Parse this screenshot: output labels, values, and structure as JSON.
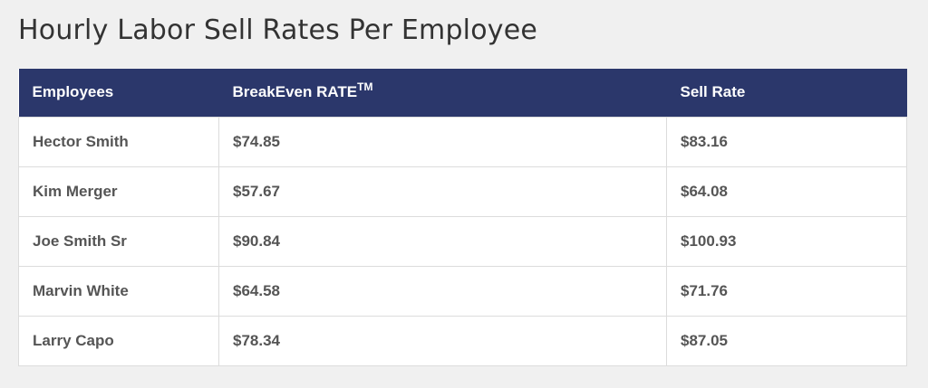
{
  "title": "Hourly Labor Sell Rates Per Employee",
  "table": {
    "headers": {
      "employees": "Employees",
      "breakeven": "BreakEven RATE",
      "breakeven_mark": "TM",
      "sell_rate": "Sell Rate"
    },
    "rows": [
      {
        "name": "Hector Smith",
        "breakeven": "$74.85",
        "sell": "$83.16"
      },
      {
        "name": "Kim Merger",
        "breakeven": "$57.67",
        "sell": "$64.08"
      },
      {
        "name": "Joe Smith Sr",
        "breakeven": "$90.84",
        "sell": "$100.93"
      },
      {
        "name": "Marvin White",
        "breakeven": "$64.58",
        "sell": "$71.76"
      },
      {
        "name": "Larry Capo",
        "breakeven": "$78.34",
        "sell": "$87.05"
      }
    ]
  },
  "colors": {
    "header_bg": "#2b376b",
    "page_bg": "#f0f0f0"
  }
}
